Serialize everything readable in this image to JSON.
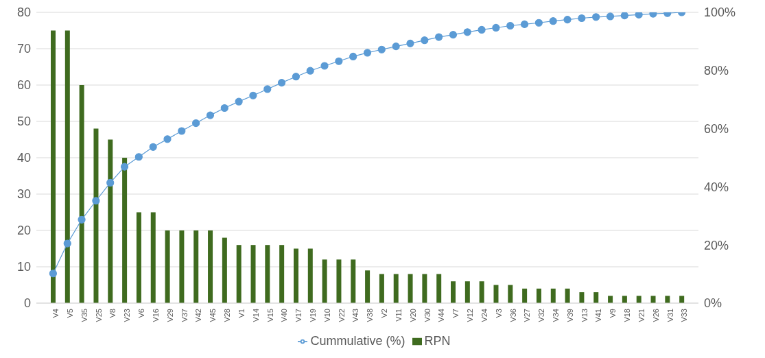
{
  "chart_data": {
    "type": "bar",
    "categories": [
      "V4",
      "V5",
      "V35",
      "V25",
      "V8",
      "V23",
      "V6",
      "V16",
      "V29",
      "V37",
      "V42",
      "V45",
      "V28",
      "V1",
      "V14",
      "V15",
      "V40",
      "V17",
      "V19",
      "V10",
      "V22",
      "V43",
      "V38",
      "V2",
      "V11",
      "V20",
      "V30",
      "V44",
      "V7",
      "V12",
      "V24",
      "V3",
      "V36",
      "V27",
      "V32",
      "V34",
      "V39",
      "V13",
      "V41",
      "V9",
      "V18",
      "V21",
      "V26",
      "V31",
      "V33"
    ],
    "series": [
      {
        "name": "RPN",
        "color": "#3f6b1f",
        "values": [
          75,
          75,
          60,
          48,
          45,
          40,
          25,
          25,
          20,
          20,
          20,
          20,
          18,
          16,
          16,
          16,
          16,
          15,
          15,
          12,
          12,
          12,
          9,
          8,
          8,
          8,
          8,
          8,
          6,
          6,
          6,
          5,
          5,
          4,
          4,
          4,
          4,
          3,
          3,
          2,
          2,
          2,
          2,
          2,
          2
        ]
      },
      {
        "name": "Cummulative (%)",
        "type": "line",
        "axis": "y2",
        "color": "#5b9bd5",
        "values": [
          10.2,
          20.5,
          28.7,
          35.2,
          41.4,
          46.9,
          50.3,
          53.7,
          56.4,
          59.2,
          61.9,
          64.6,
          67.1,
          69.3,
          71.4,
          73.6,
          75.8,
          77.9,
          79.9,
          81.6,
          83.2,
          84.8,
          86.1,
          87.2,
          88.3,
          89.3,
          90.4,
          91.5,
          92.3,
          93.2,
          94.0,
          94.7,
          95.4,
          95.9,
          96.4,
          97.0,
          97.5,
          98.0,
          98.4,
          98.6,
          98.9,
          99.2,
          99.5,
          99.7,
          100
        ]
      }
    ],
    "ylim": [
      0,
      80
    ],
    "yticks": [
      0,
      10,
      20,
      30,
      40,
      50,
      60,
      70,
      80
    ],
    "y2lim": [
      0,
      100
    ],
    "y2ticks": [
      {
        "value": 0,
        "label": "0%"
      },
      {
        "value": 20,
        "label": "20%"
      },
      {
        "value": 40,
        "label": "40%"
      },
      {
        "value": 60,
        "label": "60%"
      },
      {
        "value": 80,
        "label": "80%"
      },
      {
        "value": 100,
        "label": "100%"
      }
    ],
    "grid": "y",
    "legend": "bottom",
    "marker": "circle",
    "line_style": "solid"
  }
}
